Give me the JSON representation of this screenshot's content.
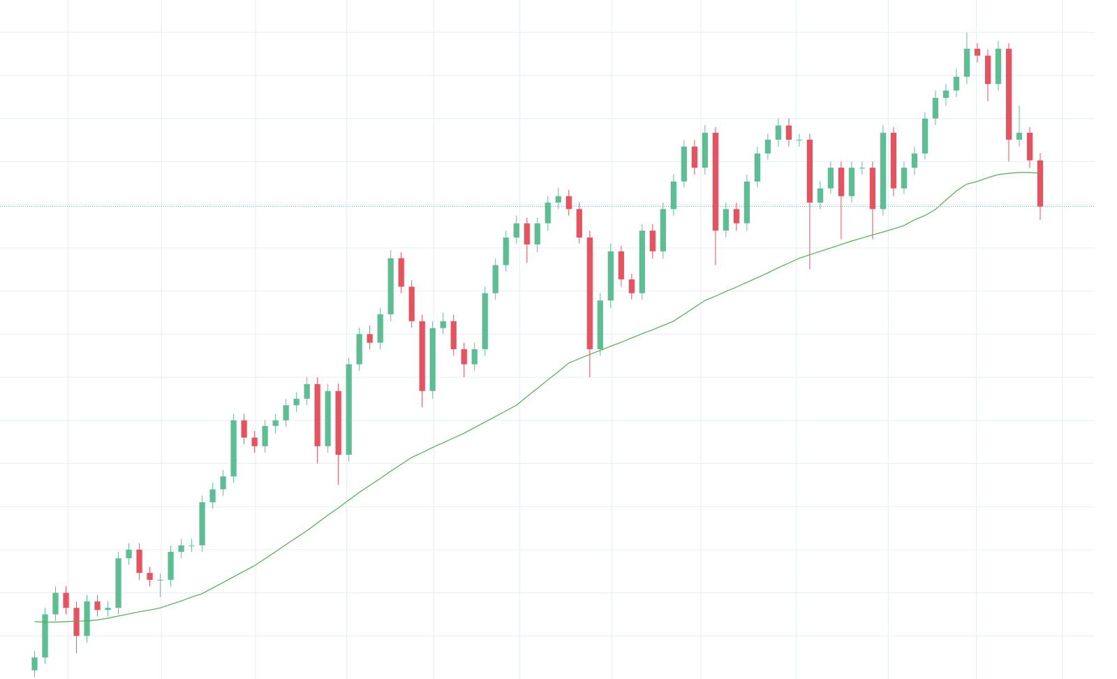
{
  "chart_data": {
    "type": "candlestick",
    "up_color": "#5cbf94",
    "down_color": "#e8515e",
    "grid": true,
    "grid_color": "#e6edf3",
    "xlim": [
      -3.3,
      101.2
    ],
    "ylim": [
      0,
      157.5
    ],
    "xticks": [
      3.2,
      12.1,
      21.1,
      29.8,
      38.1,
      46.3,
      55.1,
      63.6,
      72.7,
      81.5,
      89.9,
      98.1
    ],
    "yticks": [
      10,
      20,
      30,
      40,
      50,
      60,
      70,
      80,
      90,
      100,
      110,
      120,
      130,
      140,
      150
    ],
    "last_price": 109.6,
    "last_price_color": "#4db6ac",
    "ohlc": [
      [
        2,
        6.5,
        0.5,
        5
      ],
      [
        5,
        16.5,
        3.5,
        15
      ],
      [
        15,
        21.5,
        13.5,
        20
      ],
      [
        20,
        21.5,
        15,
        16.5
      ],
      [
        16.5,
        18,
        6,
        10
      ],
      [
        10,
        19.5,
        8.5,
        18
      ],
      [
        18,
        19.5,
        14.5,
        16
      ],
      [
        16,
        18,
        14.5,
        16.5
      ],
      [
        16.5,
        29.5,
        15,
        28
      ],
      [
        28,
        31.5,
        26.5,
        30
      ],
      [
        30,
        31.5,
        23,
        24.6
      ],
      [
        24.6,
        26,
        21.5,
        23
      ],
      [
        23,
        24.5,
        19,
        23
      ],
      [
        23,
        31,
        21.5,
        29.5
      ],
      [
        29.5,
        32.5,
        28,
        31
      ],
      [
        31,
        32.5,
        29.5,
        31
      ],
      [
        31,
        42.5,
        29.5,
        41
      ],
      [
        41,
        45.5,
        39.5,
        44
      ],
      [
        44,
        48.5,
        42.5,
        47
      ],
      [
        47,
        61.5,
        45.5,
        60
      ],
      [
        60,
        61.5,
        54.5,
        56
      ],
      [
        56,
        57.5,
        52.5,
        54
      ],
      [
        54,
        60,
        52.5,
        58.7
      ],
      [
        58.7,
        61.5,
        57,
        60
      ],
      [
        60,
        65,
        58.5,
        63.5
      ],
      [
        63.5,
        66.5,
        62,
        65
      ],
      [
        65,
        70,
        63.5,
        68.4
      ],
      [
        68.4,
        70,
        50,
        54
      ],
      [
        54,
        68.5,
        52.5,
        66.8
      ],
      [
        66.8,
        68.5,
        45,
        52
      ],
      [
        52,
        74.5,
        50.5,
        73
      ],
      [
        73,
        81.5,
        71.5,
        80
      ],
      [
        80,
        82,
        76.5,
        78
      ],
      [
        78,
        86,
        76.5,
        84.6
      ],
      [
        84.6,
        99.5,
        83,
        97.6
      ],
      [
        97.6,
        99,
        89.5,
        91
      ],
      [
        91,
        92.5,
        81.5,
        83
      ],
      [
        83,
        84.5,
        63,
        66.8
      ],
      [
        66.8,
        83,
        65,
        81.4
      ],
      [
        81.4,
        85,
        80,
        83
      ],
      [
        83,
        84.5,
        75,
        76.5
      ],
      [
        76.5,
        78,
        70,
        73
      ],
      [
        73,
        78,
        71.5,
        76.5
      ],
      [
        76.5,
        91,
        75,
        89.5
      ],
      [
        89.5,
        97.5,
        88,
        96
      ],
      [
        96,
        104,
        94.5,
        102.4
      ],
      [
        102.4,
        107.5,
        101,
        105.7
      ],
      [
        105.7,
        107,
        96.5,
        100.8
      ],
      [
        100.8,
        107,
        99,
        105.7
      ],
      [
        105.7,
        112,
        104,
        110.5
      ],
      [
        110.5,
        114,
        109,
        112
      ],
      [
        112,
        113.5,
        107.5,
        109
      ],
      [
        109,
        110.5,
        101,
        102.4
      ],
      [
        102.4,
        104,
        70,
        76.5
      ],
      [
        76.5,
        89.5,
        75,
        87.8
      ],
      [
        87.8,
        101,
        86,
        99.2
      ],
      [
        99.2,
        100.5,
        91,
        92.7
      ],
      [
        92.7,
        94,
        88,
        89.5
      ],
      [
        89.5,
        105.5,
        88,
        104
      ],
      [
        104,
        105.5,
        97.5,
        99.2
      ],
      [
        99.2,
        110.5,
        97.5,
        109
      ],
      [
        109,
        117,
        107.5,
        115.4
      ],
      [
        115.4,
        125,
        114,
        123.5
      ],
      [
        123.5,
        125,
        117,
        118.6
      ],
      [
        118.6,
        128.5,
        117,
        126.7
      ],
      [
        126.7,
        128,
        96,
        104
      ],
      [
        104,
        110.5,
        102.5,
        109
      ],
      [
        109,
        110.5,
        104,
        105.7
      ],
      [
        105.7,
        117,
        104,
        115.4
      ],
      [
        115.4,
        123.5,
        114,
        121.9
      ],
      [
        121.9,
        126.5,
        120.5,
        125.1
      ],
      [
        125.1,
        130,
        123.5,
        128.4
      ],
      [
        128.4,
        130,
        123.5,
        125.1
      ],
      [
        125.1,
        126.5,
        123.5,
        125.1
      ],
      [
        125.1,
        126.5,
        95,
        110.5
      ],
      [
        110.5,
        115.5,
        109,
        113.8
      ],
      [
        113.8,
        120,
        112.5,
        118.6
      ],
      [
        118.6,
        120,
        102,
        112
      ],
      [
        112,
        120,
        110.5,
        118.6
      ],
      [
        118.6,
        120,
        117,
        118.6
      ],
      [
        118.6,
        120,
        102,
        109
      ],
      [
        109,
        128.5,
        107.5,
        126.7
      ],
      [
        126.7,
        128,
        112,
        113.8
      ],
      [
        113.8,
        120,
        112.5,
        118.6
      ],
      [
        118.6,
        123.5,
        117,
        121.9
      ],
      [
        121.9,
        131.5,
        120.5,
        130
      ],
      [
        130,
        136.5,
        128.5,
        134.8
      ],
      [
        134.8,
        138,
        133,
        136.5
      ],
      [
        136.5,
        141.5,
        135,
        139.7
      ],
      [
        139.7,
        150,
        138,
        146.2
      ],
      [
        146.2,
        147.5,
        143,
        144.6
      ],
      [
        144.6,
        146,
        134,
        138
      ],
      [
        138,
        148,
        136.5,
        146.2
      ],
      [
        146.2,
        147.5,
        120,
        125.1
      ],
      [
        125.1,
        133,
        123.5,
        126.7
      ],
      [
        126.7,
        128,
        118.5,
        120.3
      ],
      [
        120.3,
        122,
        106.5,
        109.6
      ]
    ],
    "moving_average": {
      "color": "#4caf50",
      "values": [
        13.3,
        13.2,
        13.2,
        13.3,
        13.4,
        13.5,
        13.7,
        14.1,
        14.6,
        15.1,
        15.6,
        16.0,
        16.5,
        17.3,
        18.1,
        19.0,
        19.8,
        21.1,
        22.4,
        23.7,
        25.0,
        26.3,
        27.9,
        29.5,
        31.2,
        32.8,
        34.4,
        36.2,
        38.0,
        39.7,
        41.5,
        43.3,
        44.9,
        46.5,
        48.2,
        49.8,
        51.4,
        52.5,
        53.7,
        54.8,
        55.9,
        57.0,
        58.3,
        59.6,
        60.9,
        62.2,
        63.5,
        65.5,
        67.4,
        69.4,
        71.3,
        73.3,
        74.3,
        75.3,
        76.2,
        77.2,
        78.1,
        79.1,
        80.1,
        81.0,
        82.0,
        83.0,
        84.6,
        86.2,
        87.8,
        88.8,
        89.9,
        90.9,
        92.0,
        93.1,
        94.2,
        95.4,
        96.5,
        97.6,
        98.4,
        99.2,
        100.0,
        100.8,
        101.6,
        102.3,
        103.0,
        103.7,
        104.4,
        105.2,
        106.5,
        107.5,
        108.9,
        111.1,
        113.2,
        114.8,
        115.4,
        116.3,
        117.0,
        117.3,
        117.5,
        117.5,
        117.3
      ]
    }
  }
}
